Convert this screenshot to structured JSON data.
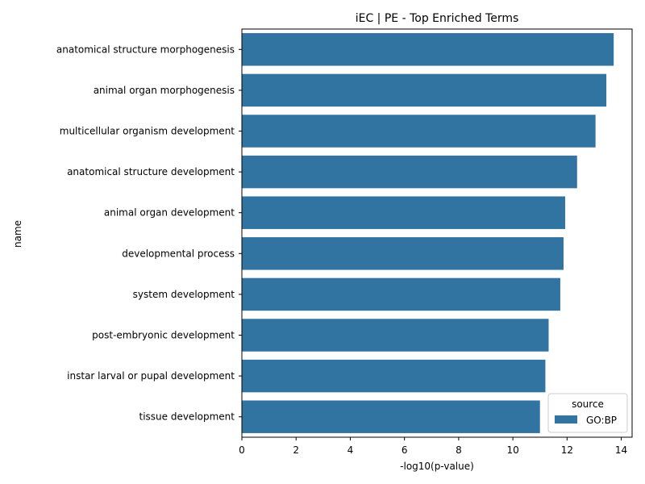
{
  "chart_data": {
    "type": "bar",
    "orientation": "horizontal",
    "title": "iEC | PE - Top Enriched Terms",
    "xlabel": "-log10(p-value)",
    "ylabel": "name",
    "categories": [
      "anatomical structure morphogenesis",
      "animal organ morphogenesis",
      "multicellular organism development",
      "anatomical structure development",
      "animal organ development",
      "developmental process",
      "system development",
      "post-embryonic development",
      "instar larval or pupal development",
      "tissue development"
    ],
    "series": [
      {
        "name": "GO:BP",
        "values": [
          13.72,
          13.45,
          13.05,
          12.37,
          11.93,
          11.87,
          11.75,
          11.32,
          11.2,
          11.0
        ],
        "color": "#3274a1"
      }
    ],
    "xlim": [
      0,
      14.4
    ],
    "xticks": [
      0,
      2,
      4,
      6,
      8,
      10,
      12,
      14
    ],
    "grid": false,
    "legend": {
      "title": "source",
      "placement": "bottom-right"
    }
  }
}
